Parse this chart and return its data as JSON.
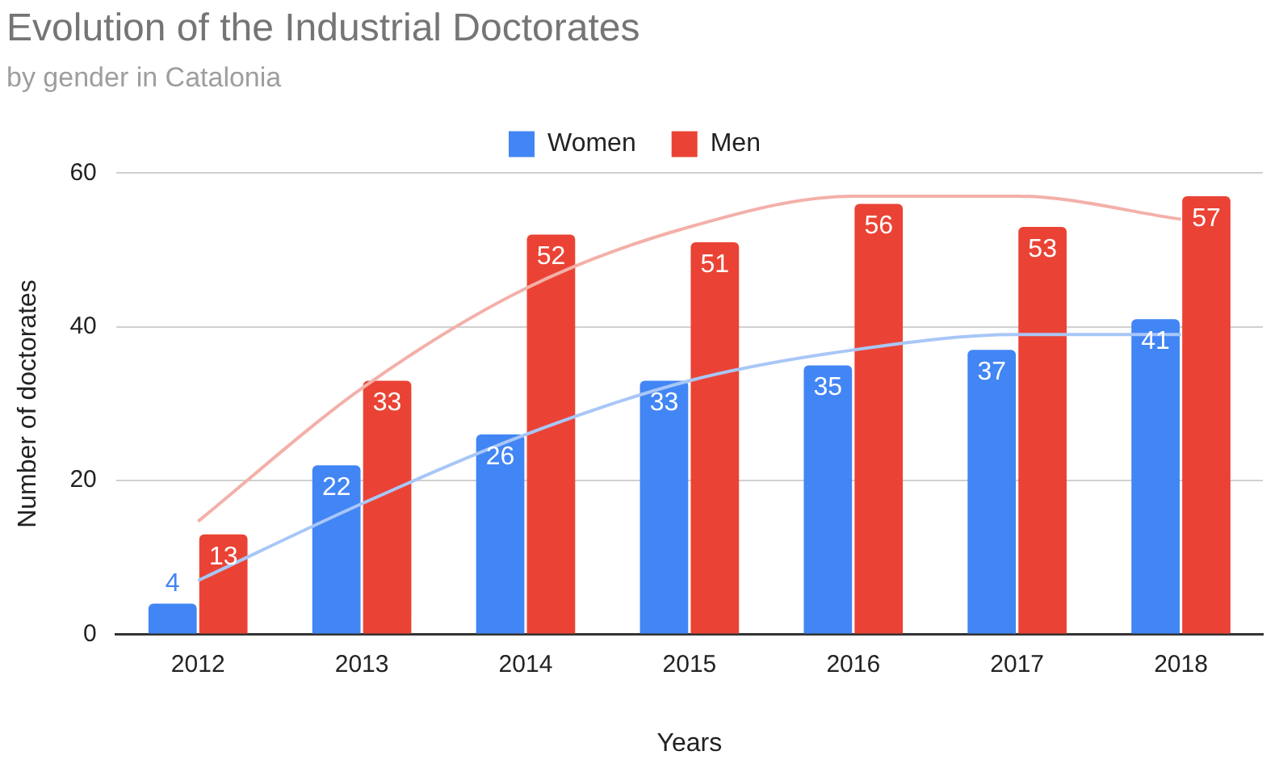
{
  "chart_data": {
    "type": "bar",
    "title": "Evolution of the Industrial Doctorates",
    "subtitle": "by gender in Catalonia",
    "xlabel": "Years",
    "ylabel": "Number of doctorates",
    "categories": [
      "2012",
      "2013",
      "2014",
      "2015",
      "2016",
      "2017",
      "2018"
    ],
    "series": [
      {
        "name": "Women",
        "color": "#4285f4",
        "values": [
          4,
          22,
          26,
          33,
          35,
          37,
          41
        ],
        "value_labels": [
          "4",
          "22",
          "26",
          "33",
          "35",
          "37",
          "41"
        ]
      },
      {
        "name": "Men",
        "color": "#ea4335",
        "values": [
          13,
          33,
          52,
          51,
          56,
          53,
          57
        ],
        "value_labels": [
          "13",
          "33",
          "52",
          "51",
          "56",
          "53",
          "57"
        ]
      },
      {
        "type": "line",
        "color": "#a8c7f7",
        "values": [
          7,
          17,
          26,
          33,
          37,
          39,
          39
        ]
      },
      {
        "type": "line",
        "color": "#f3b0a9",
        "values": [
          14.7,
          32,
          45,
          53,
          57,
          57,
          54
        ]
      }
    ],
    "ylim": [
      0,
      60
    ],
    "yticks": [
      0,
      20,
      40,
      60
    ],
    "grid": "y",
    "legend": "top"
  }
}
